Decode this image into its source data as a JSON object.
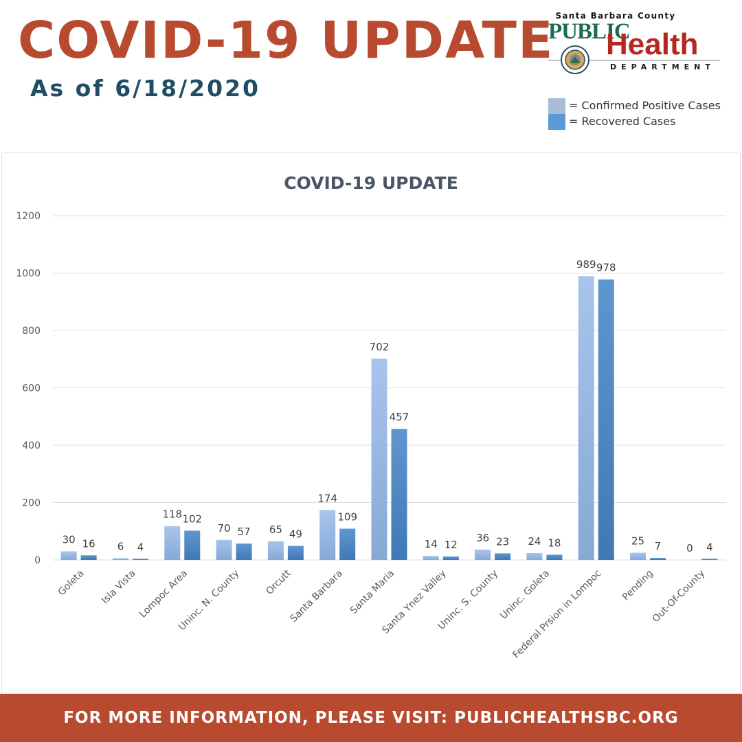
{
  "header": {
    "title": "COVID-19 UPDATE",
    "subtitle": "As of 6/18/2020"
  },
  "logo": {
    "county": "Santa Barbara County",
    "public": "PUBLIC",
    "health": "Health",
    "department": "DEPARTMENT"
  },
  "legend": {
    "items": [
      {
        "label": "= Confirmed Positive Cases",
        "color": "#a9bcd6"
      },
      {
        "label": "= Recovered Cases",
        "color": "#5b9bd5"
      }
    ]
  },
  "chart_data": {
    "type": "bar",
    "title": "COVID-19 UPDATE",
    "xlabel": "",
    "ylabel": "",
    "ylim": [
      0,
      1200
    ],
    "yticks": [
      "0",
      "200",
      "400",
      "600",
      "800",
      "1000",
      "1200"
    ],
    "grid": true,
    "categories": [
      "Goleta",
      "Isla Vista",
      "Lompoc Area",
      "Uninc. N. County",
      "Orcutt",
      "Santa Barbara",
      "Santa Maria",
      "Santa Ynez Valley",
      "Uninc. S. County",
      "Uninc. Goleta",
      "Federal Prsion in Lompoc",
      "Pending",
      "Out-Of-County"
    ],
    "series": [
      {
        "name": "Confirmed Positive Cases",
        "color": "#9dbde6",
        "values": [
          30,
          6,
          118,
          70,
          65,
          174,
          702,
          14,
          36,
          24,
          989,
          25,
          0
        ],
        "labels": [
          "30",
          "6",
          "118",
          "70",
          "65",
          "174",
          "702",
          "14",
          "36",
          "24",
          "989",
          "25",
          "0"
        ]
      },
      {
        "name": "Recovered Cases",
        "color": "#4a86c3",
        "values": [
          16,
          4,
          102,
          57,
          49,
          109,
          457,
          12,
          23,
          18,
          978,
          7,
          4
        ],
        "labels": [
          "16",
          "4",
          "102",
          "57",
          "49",
          "109",
          "457",
          "12",
          "23",
          "18",
          "978",
          "7",
          "4"
        ]
      }
    ]
  },
  "footer": {
    "text": "FOR MORE INFORMATION, PLEASE VISIT: PUBLICHEALTHSBC.ORG"
  }
}
